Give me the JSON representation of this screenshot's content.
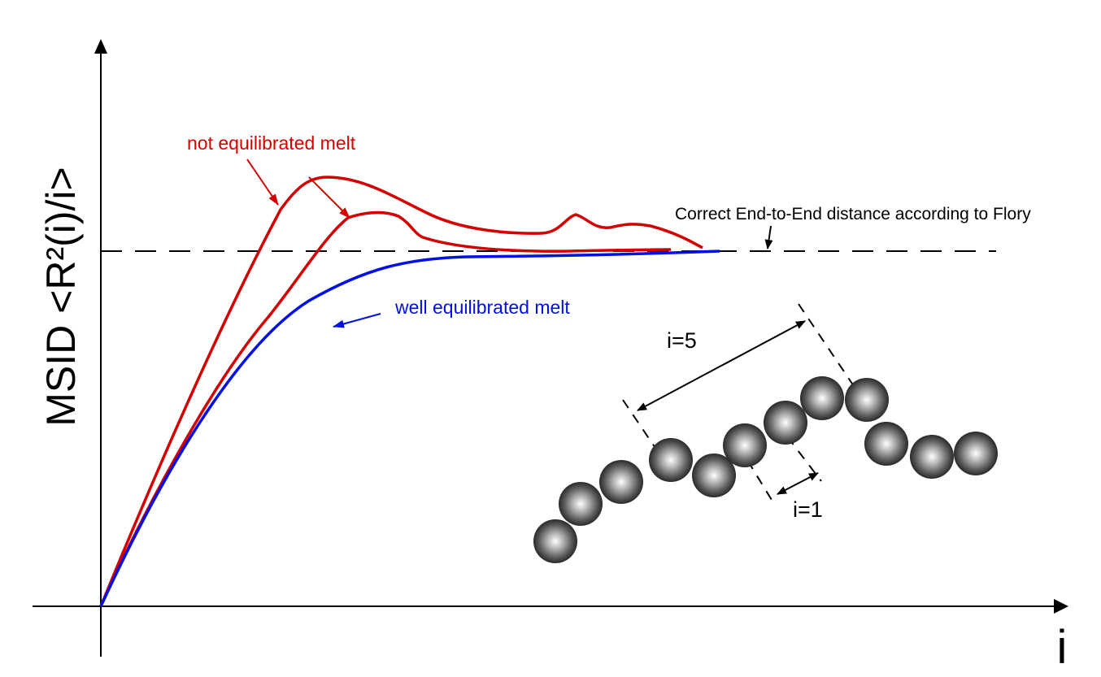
{
  "axes": {
    "y_label": "MSID <R²(i)/i>",
    "x_label": "i"
  },
  "annotations": {
    "not_equilibrated": "not equilibrated melt",
    "well_equilibrated": "well equilibrated melt",
    "flory": "Correct End-to-End distance according to Flory",
    "i5": "i=5",
    "i1": "i=1"
  },
  "colors": {
    "not_equilibrated": "#d40000",
    "well_equilibrated": "#0010e6",
    "axis": "#000000",
    "bead": "#555555"
  },
  "chain": {
    "bead_count": 12
  }
}
